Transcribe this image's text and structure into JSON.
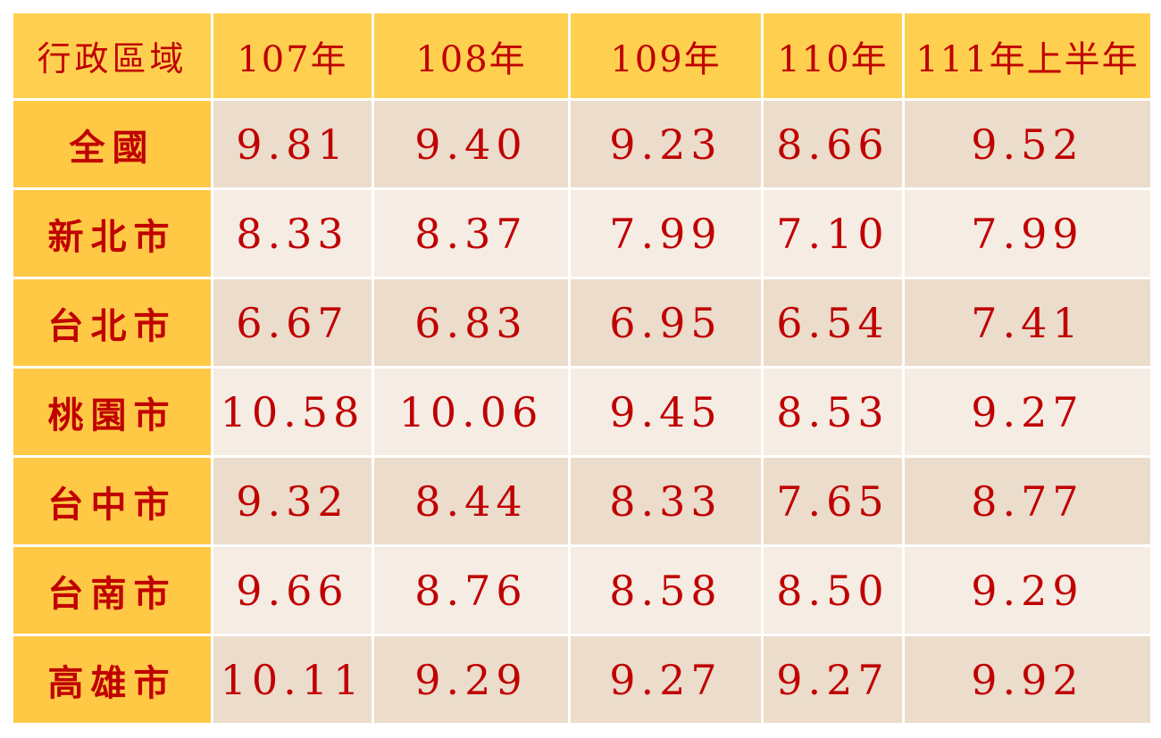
{
  "table": {
    "header": [
      "行政區域",
      "107年",
      "108年",
      "109年",
      "110年",
      "111年上半年"
    ],
    "rows": [
      {
        "region": "全國",
        "values": [
          "9.81",
          "9.40",
          "9.23",
          "8.66",
          "9.52"
        ]
      },
      {
        "region": "新北市",
        "values": [
          "8.33",
          "8.37",
          "7.99",
          "7.10",
          "7.99"
        ]
      },
      {
        "region": "台北市",
        "values": [
          "6.67",
          "6.83",
          "6.95",
          "6.54",
          "7.41"
        ]
      },
      {
        "region": "桃園市",
        "values": [
          "10.58",
          "10.06",
          "9.45",
          "8.53",
          "9.27"
        ]
      },
      {
        "region": "台中市",
        "values": [
          "9.32",
          "8.44",
          "8.33",
          "7.65",
          "8.77"
        ]
      },
      {
        "region": "台南市",
        "values": [
          "9.66",
          "8.76",
          "8.58",
          "8.50",
          "9.29"
        ]
      },
      {
        "region": "高雄市",
        "values": [
          "10.11",
          "9.29",
          "9.27",
          "9.27",
          "9.92"
        ]
      }
    ]
  },
  "colors": {
    "header_bg": "#ffd04f",
    "region_bg": "#ffc845",
    "row_dark_bg": "#ebdccb",
    "row_light_bg": "#f5ece4",
    "text": "#c00000"
  }
}
